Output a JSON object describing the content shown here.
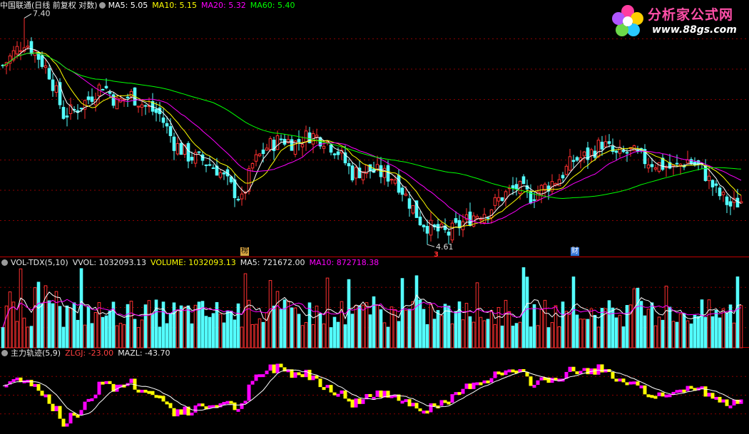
{
  "panels": {
    "price": {
      "title": "中国联通(日线 前复权 对数)",
      "ma5": "MA5: 5.05",
      "ma10": "MA10: 5.15",
      "ma20": "MA20: 5.32",
      "ma60": "MA60: 5.40",
      "high_label": "7.40",
      "low_label": "4.61",
      "badge_bang": "榜",
      "badge_cai": "财",
      "marker": "3"
    },
    "volume": {
      "title": "VOL-TDX(5,10)",
      "vvol": "VVOL: 1032093.13",
      "volume": "VOLUME: 1032093.13",
      "ma5": "MA5: 721672.00",
      "ma10": "MA10: 872718.38"
    },
    "zlgj": {
      "title": "主力轨迹(5,9)",
      "zlgj": "ZLGJ: -23.00",
      "mazl": "MAZL: -43.70"
    }
  },
  "logo": {
    "title": "分析家公式网",
    "url": "www.88gs.com"
  },
  "colors": {
    "up": "#ff3030",
    "down": "#54ffff",
    "ma5": "#ffffff",
    "ma10": "#ffff00",
    "ma20": "#ff00ff",
    "ma60": "#00ff00",
    "grid": "#8b0000",
    "divider": "#c00000",
    "zl_up": "#ff00ff",
    "zl_down": "#ffff00"
  },
  "chart_data": [
    {
      "type": "candlestick",
      "title": "中国联通(日线 前复权 对数)",
      "series_names": [
        "MA5",
        "MA10",
        "MA20",
        "MA60"
      ],
      "price_range": [
        4.55,
        7.55
      ],
      "annotations": {
        "high": 7.4,
        "low": 4.61
      },
      "keypoints_close": [
        [
          0,
          6.7
        ],
        [
          6,
          7.05
        ],
        [
          9,
          6.9
        ],
        [
          13,
          6.6
        ],
        [
          17,
          6.05
        ],
        [
          20,
          6.1
        ],
        [
          24,
          6.25
        ],
        [
          28,
          6.45
        ],
        [
          32,
          6.2
        ],
        [
          36,
          6.3
        ],
        [
          40,
          6.15
        ],
        [
          44,
          6.05
        ],
        [
          48,
          5.7
        ],
        [
          52,
          5.55
        ],
        [
          56,
          5.5
        ],
        [
          60,
          5.4
        ],
        [
          64,
          5.2
        ],
        [
          67,
          5.05
        ],
        [
          70,
          5.45
        ],
        [
          74,
          5.65
        ],
        [
          78,
          5.75
        ],
        [
          82,
          5.7
        ],
        [
          86,
          5.8
        ],
        [
          90,
          5.75
        ],
        [
          94,
          5.6
        ],
        [
          98,
          5.35
        ],
        [
          102,
          5.4
        ],
        [
          106,
          5.35
        ],
        [
          110,
          5.3
        ],
        [
          113,
          5.1
        ],
        [
          117,
          4.85
        ],
        [
          121,
          4.75
        ],
        [
          125,
          4.72
        ],
        [
          128,
          4.8
        ],
        [
          132,
          4.9
        ],
        [
          136,
          4.95
        ],
        [
          140,
          5.1
        ],
        [
          144,
          5.2
        ],
        [
          148,
          5.1
        ],
        [
          152,
          5.2
        ],
        [
          156,
          5.3
        ],
        [
          160,
          5.5
        ],
        [
          164,
          5.55
        ],
        [
          168,
          5.7
        ],
        [
          172,
          5.55
        ],
        [
          176,
          5.6
        ],
        [
          180,
          5.5
        ],
        [
          184,
          5.45
        ],
        [
          188,
          5.4
        ],
        [
          192,
          5.5
        ],
        [
          196,
          5.4
        ],
        [
          200,
          5.15
        ],
        [
          204,
          5.0
        ],
        [
          207,
          5.05
        ]
      ]
    },
    {
      "type": "bar",
      "title": "VOL-TDX(5,10)",
      "series_names": [
        "VVOL",
        "VOLUME",
        "MA5",
        "MA10"
      ],
      "latest": {
        "VVOL": 1032093.13,
        "VOLUME": 1032093.13,
        "MA5": 721672.0,
        "MA10": 872718.38
      }
    },
    {
      "type": "bar",
      "title": "主力轨迹(5,9)",
      "series_names": [
        "ZLGJ",
        "MAZL"
      ],
      "latest": {
        "ZLGJ": -23.0,
        "MAZL": -43.7
      }
    }
  ]
}
